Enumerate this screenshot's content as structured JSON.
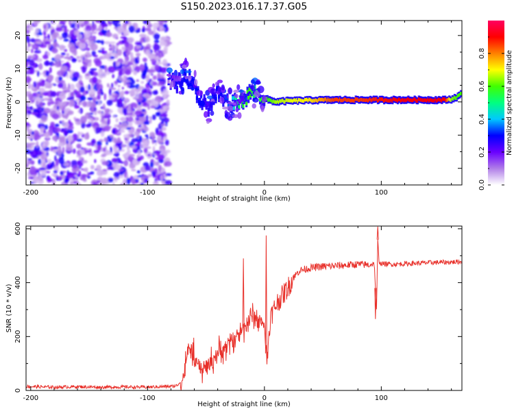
{
  "title": "S150.2023.016.17.37.G05",
  "chart_data": [
    {
      "type": "heatmap",
      "name": "spectrogram",
      "xlabel": "Height of straight line (km)",
      "ylabel": "Frequency (Hz)",
      "xlim": [
        -204,
        169
      ],
      "ylim": [
        -25,
        24.5
      ],
      "xticks": [
        -200,
        -100,
        0,
        100
      ],
      "xtick_labels": [
        "-200",
        "-100",
        "0",
        "100"
      ],
      "yticks": [
        -20,
        -10,
        0,
        10,
        20
      ],
      "ytick_labels": [
        "-20",
        "-10",
        "0",
        "10",
        "20"
      ],
      "noise_region_x": [
        -204,
        -82
      ],
      "signal_trace": {
        "x": [
          -82,
          -75,
          -68,
          -62,
          -56,
          -52,
          -48,
          -44,
          -40,
          -36,
          -32,
          -28,
          -24,
          -20,
          -16,
          -12,
          -8,
          -4,
          0,
          5,
          10,
          20,
          40,
          60,
          80,
          100,
          120,
          140,
          155,
          160,
          165,
          169
        ],
        "y": [
          6,
          5.5,
          8,
          6,
          2,
          0,
          -2,
          1,
          3,
          1.5,
          0,
          -1,
          0,
          0.5,
          1,
          2.5,
          3,
          2,
          1,
          0.5,
          0,
          0.3,
          0.5,
          0.6,
          0.6,
          0.6,
          0.6,
          0.6,
          0.6,
          0.8,
          1.5,
          2.5
        ],
        "amplitude": [
          0.1,
          0.25,
          0.3,
          0.3,
          0.3,
          0.25,
          0.22,
          0.28,
          0.3,
          0.3,
          0.32,
          0.38,
          0.5,
          0.55,
          0.58,
          0.6,
          0.5,
          0.55,
          0.6,
          0.6,
          0.65,
          0.68,
          0.72,
          0.85,
          0.85,
          0.88,
          0.9,
          0.9,
          0.9,
          0.65,
          0.6,
          0.6
        ]
      },
      "colorbar": {
        "label": "Normalized spectral amplitude",
        "range": [
          0,
          1
        ],
        "ticks": [
          0.0,
          0.2,
          0.4,
          0.6,
          0.8
        ],
        "tick_labels": [
          "0.0",
          "0.2",
          "0.4",
          "0.6",
          "0.8"
        ],
        "colors": [
          "#ffffff",
          "#b07ee8",
          "#6a00ff",
          "#0000ff",
          "#00c8ff",
          "#00ff80",
          "#40ff00",
          "#ffff00",
          "#ff8000",
          "#ff0000",
          "#ff0060"
        ]
      }
    },
    {
      "type": "line",
      "name": "snr",
      "xlabel": "Height of straight line (km)",
      "ylabel": "SNR (10 * v/v)",
      "xlim": [
        -204,
        169
      ],
      "ylim": [
        0,
        610
      ],
      "xticks": [
        -200,
        -100,
        0,
        100
      ],
      "xtick_labels": [
        "-200",
        "-100",
        "0",
        "100"
      ],
      "yticks": [
        0,
        200,
        400,
        600
      ],
      "ytick_labels": [
        "0",
        "200",
        "400",
        "600"
      ],
      "color": "#e8302a",
      "series": [
        {
          "name": "SNR",
          "x": [
            -204,
            -180,
            -160,
            -140,
            -120,
            -100,
            -90,
            -80,
            -75,
            -70,
            -67,
            -64,
            -60,
            -55,
            -50,
            -45,
            -40,
            -35,
            -30,
            -25,
            -20,
            -15,
            -10,
            -5,
            0,
            2,
            5,
            8,
            10,
            15,
            20,
            25,
            30,
            40,
            50,
            60,
            70,
            80,
            90,
            94,
            96,
            97,
            98,
            100,
            110,
            120,
            130,
            140,
            150,
            160,
            169
          ],
          "y": [
            15,
            12,
            14,
            12,
            13,
            12,
            14,
            15,
            18,
            40,
            110,
            160,
            130,
            70,
            90,
            110,
            140,
            150,
            175,
            200,
            220,
            250,
            280,
            260,
            250,
            100,
            270,
            300,
            320,
            350,
            380,
            420,
            445,
            455,
            460,
            462,
            465,
            468,
            466,
            470,
            290,
            560,
            480,
            470,
            468,
            470,
            472,
            474,
            475,
            476,
            478
          ]
        }
      ],
      "spikes": [
        {
          "x": 1.5,
          "y": 575
        },
        {
          "x": -2.5,
          "y": 240
        },
        {
          "x": -18,
          "y": 490
        },
        {
          "x": 97,
          "y": 608
        },
        {
          "x": 95,
          "y": 265
        }
      ]
    }
  ]
}
